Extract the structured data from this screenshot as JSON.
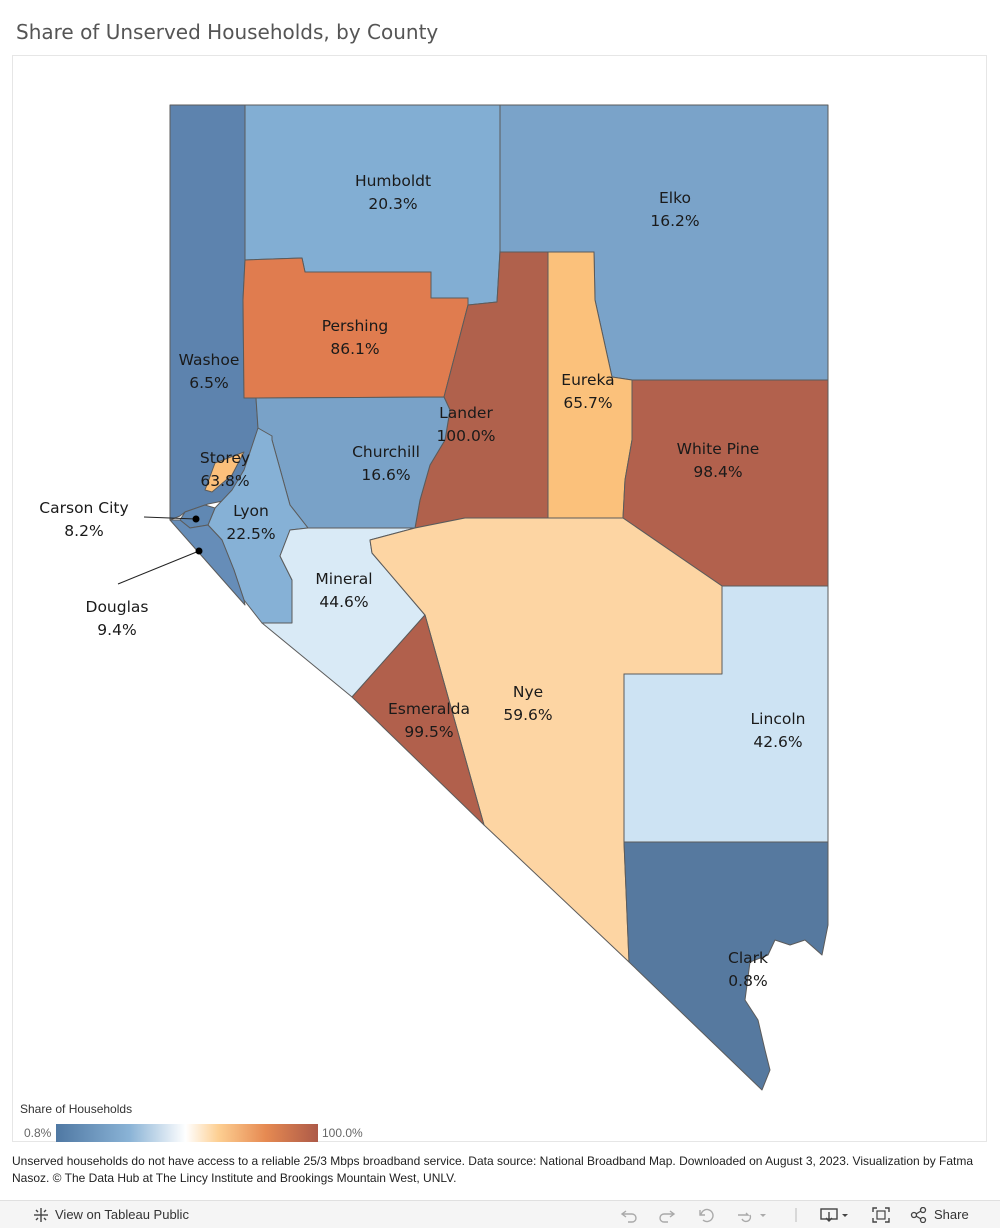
{
  "title": "Share of Unserved Households, by County",
  "colors": {
    "clark": "#56799f",
    "washoe": "#5d83ae",
    "carson_city": "#6088b3",
    "douglas": "#668db8",
    "elko": "#7aa3c9",
    "churchill": "#79a2c8",
    "humboldt": "#82aed3",
    "lyon": "#86b1d6",
    "lincoln": "#cde3f3",
    "mineral": "#d9eaf6",
    "nye": "#fdd5a3",
    "storey": "#fcc07b",
    "eureka": "#fbc17b",
    "pershing": "#e07c4f",
    "white_pine": "#b2614d",
    "esmeralda": "#b1604c",
    "lander": "#b0614c"
  },
  "counties": [
    {
      "id": "humboldt",
      "name": "Humboldt",
      "value": "20.3%"
    },
    {
      "id": "elko",
      "name": "Elko",
      "value": "16.2%"
    },
    {
      "id": "pershing",
      "name": "Pershing",
      "value": "86.1%"
    },
    {
      "id": "washoe",
      "name": "Washoe",
      "value": "6.5%"
    },
    {
      "id": "lander",
      "name": "Lander",
      "value": "100.0%"
    },
    {
      "id": "eureka",
      "name": "Eureka",
      "value": "65.7%"
    },
    {
      "id": "churchill",
      "name": "Churchill",
      "value": "16.6%"
    },
    {
      "id": "storey",
      "name": "Storey",
      "value": "63.8%"
    },
    {
      "id": "white_pine",
      "name": "White Pine",
      "value": "98.4%"
    },
    {
      "id": "carson_city",
      "name": "Carson City",
      "value": "8.2%"
    },
    {
      "id": "lyon",
      "name": "Lyon",
      "value": "22.5%"
    },
    {
      "id": "mineral",
      "name": "Mineral",
      "value": "44.6%"
    },
    {
      "id": "douglas",
      "name": "Douglas",
      "value": "9.4%"
    },
    {
      "id": "nye",
      "name": "Nye",
      "value": "59.6%"
    },
    {
      "id": "esmeralda",
      "name": "Esmeralda",
      "value": "99.5%"
    },
    {
      "id": "lincoln",
      "name": "Lincoln",
      "value": "42.6%"
    },
    {
      "id": "clark",
      "name": "Clark",
      "value": "0.8%"
    }
  ],
  "legend": {
    "title": "Share of Households",
    "min": "0.8%",
    "max": "100.0%"
  },
  "footnote": "Unserved households do not have access to a reliable 25/3 Mbps broadband service. Data source: National Broadband Map. Downloaded on August 3, 2023.  Visualization by Fatma Nasoz. © The Data Hub at The Lincy Institute and Brookings Mountain West, UNLV.",
  "toolbar": {
    "view_label": "View on Tableau Public",
    "share_label": "Share"
  }
}
